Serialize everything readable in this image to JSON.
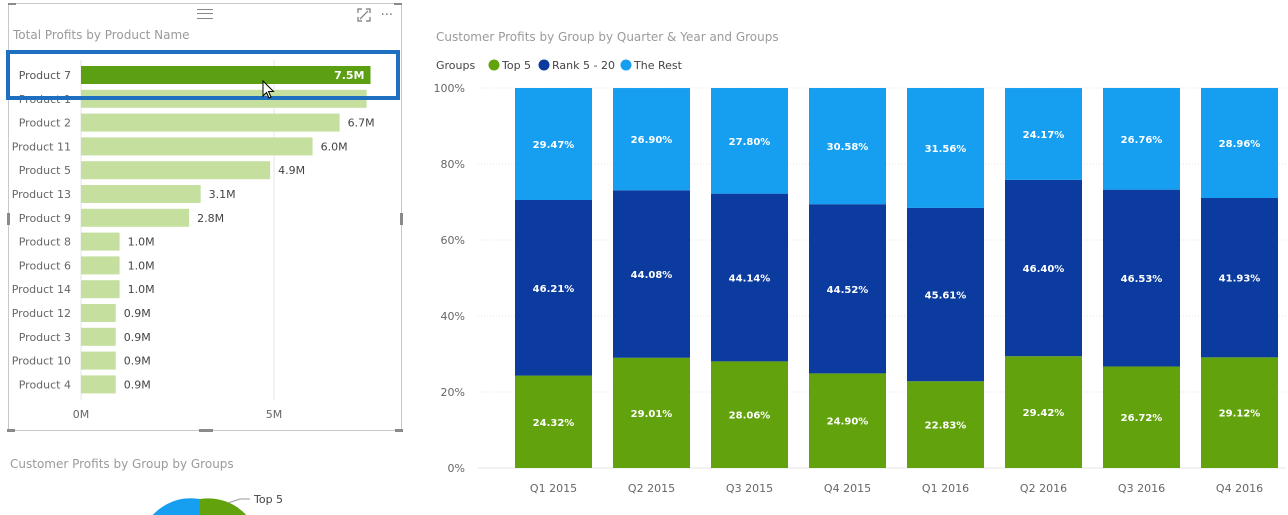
{
  "left_panel": {
    "title": "Total Profits by Product Name",
    "focus_icon": "focus-mode-icon",
    "more_icon": "more-options-icon",
    "more_glyph": "···"
  },
  "bottom_panel": {
    "title": "Customer Profits by Group by Groups",
    "pie_label": "Top 5"
  },
  "colors": {
    "top5": "#62a20c",
    "rank": "#0b3b9e",
    "rest": "#169ef0",
    "bar_selected": "#5b9f12",
    "bar_faded": "#c5df9f",
    "grid": "#e6e6e6",
    "axis_text": "#666666"
  },
  "chart_data": [
    {
      "type": "bar",
      "orientation": "horizontal",
      "title": "Total Profits by Product Name",
      "categories": [
        "Product 7",
        "Product 1",
        "Product 2",
        "Product 11",
        "Product 5",
        "Product 13",
        "Product 9",
        "Product 8",
        "Product 6",
        "Product 14",
        "Product 12",
        "Product 3",
        "Product 10",
        "Product 4"
      ],
      "values": [
        7.5,
        7.4,
        6.7,
        6.0,
        4.9,
        3.1,
        2.8,
        1.0,
        1.0,
        1.0,
        0.9,
        0.9,
        0.9,
        0.9
      ],
      "value_labels": [
        "7.5M",
        "",
        "6.7M",
        "6.0M",
        "4.9M",
        "3.1M",
        "2.8M",
        "1.0M",
        "1.0M",
        "1.0M",
        "0.9M",
        "0.9M",
        "0.9M",
        "0.9M"
      ],
      "selected_index": 0,
      "xlim": [
        0,
        7.5
      ],
      "x_ticks": [
        0,
        5
      ],
      "x_tick_labels": [
        "0M",
        "5M"
      ]
    },
    {
      "type": "bar",
      "stacked": "100%",
      "title": "Customer Profits by Group by Quarter & Year and Groups",
      "legend_title": "Groups",
      "categories": [
        "Q1 2015",
        "Q2 2015",
        "Q3 2015",
        "Q4 2015",
        "Q1 2016",
        "Q2 2016",
        "Q3 2016",
        "Q4 2016"
      ],
      "series": [
        {
          "name": "Top 5",
          "values": [
            24.32,
            29.01,
            28.06,
            24.9,
            22.83,
            29.42,
            26.72,
            29.12
          ],
          "labels": [
            "24.32%",
            "29.01%",
            "28.06%",
            "24.90%",
            "22.83%",
            "29.42%",
            "26.72%",
            "29.12%"
          ]
        },
        {
          "name": "Rank 5 - 20",
          "values": [
            46.21,
            44.08,
            44.14,
            44.52,
            45.61,
            46.4,
            46.53,
            41.93
          ],
          "labels": [
            "46.21%",
            "44.08%",
            "44.14%",
            "44.52%",
            "45.61%",
            "46.40%",
            "46.53%",
            "41.93%"
          ]
        },
        {
          "name": "The Rest",
          "values": [
            29.47,
            26.9,
            27.8,
            30.58,
            31.56,
            24.17,
            26.76,
            28.96
          ],
          "labels": [
            "29.47%",
            "26.90%",
            "27.80%",
            "30.58%",
            "31.56%",
            "24.17%",
            "26.76%",
            "28.96%"
          ]
        }
      ],
      "ylim": [
        0,
        100
      ],
      "y_ticks": [
        0,
        20,
        40,
        60,
        80,
        100
      ],
      "y_tick_labels": [
        "0%",
        "20%",
        "40%",
        "60%",
        "80%",
        "100%"
      ]
    }
  ]
}
